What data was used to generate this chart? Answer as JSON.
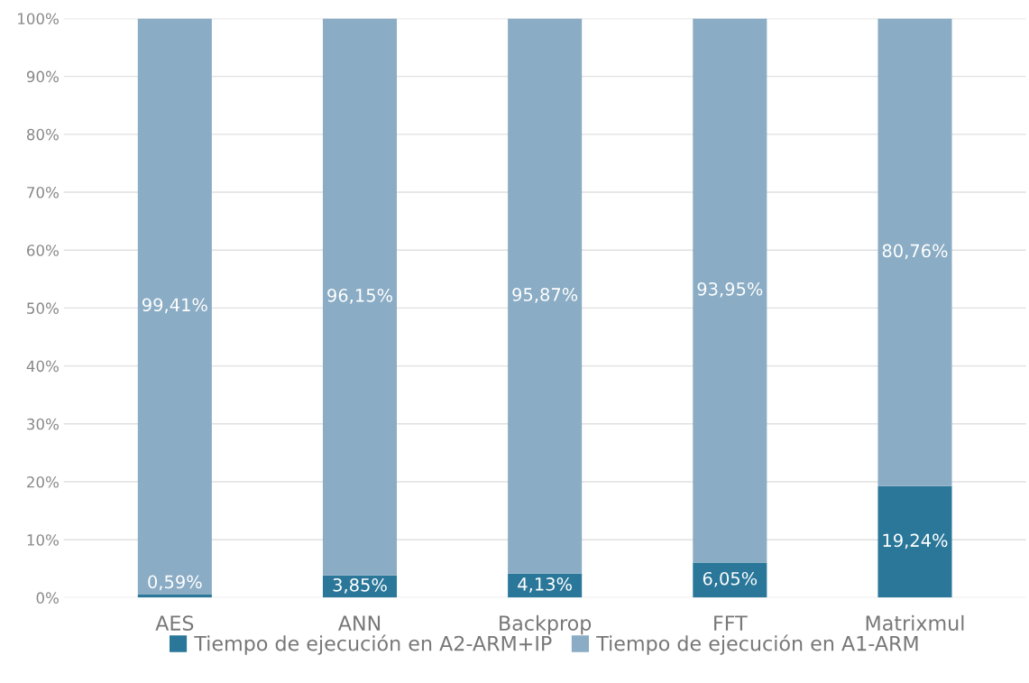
{
  "chart_data": {
    "type": "bar",
    "stacked": true,
    "categories": [
      "AES",
      "ANN",
      "Backprop",
      "FFT",
      "Matrixmul"
    ],
    "series": [
      {
        "name": "Tiempo de ejecución en A2-ARM+IP",
        "color": "#2a7799",
        "values": [
          0.59,
          3.85,
          4.13,
          6.05,
          19.24
        ],
        "value_labels": [
          "0,59%",
          "3,85%",
          "4,13%",
          "6,05%",
          "19,24%"
        ]
      },
      {
        "name": "Tiempo de ejecución en A1-ARM",
        "color": "#8aacc4",
        "values": [
          99.41,
          96.15,
          95.87,
          93.95,
          80.76
        ],
        "value_labels": [
          "99,41%",
          "96,15%",
          "95,87%",
          "93,95%",
          "80,76%"
        ]
      }
    ],
    "ylim": [
      0,
      100
    ],
    "yticks": [
      {
        "value": 0,
        "label": "0%"
      },
      {
        "value": 10,
        "label": "10%"
      },
      {
        "value": 20,
        "label": "20%"
      },
      {
        "value": 30,
        "label": "30%"
      },
      {
        "value": 40,
        "label": "40%"
      },
      {
        "value": 50,
        "label": "50%"
      },
      {
        "value": 60,
        "label": "60%"
      },
      {
        "value": 70,
        "label": "70%"
      },
      {
        "value": 80,
        "label": "80%"
      },
      {
        "value": 90,
        "label": "90%"
      },
      {
        "value": 100,
        "label": "100%"
      }
    ],
    "grid": "y",
    "legend": "bottom"
  }
}
